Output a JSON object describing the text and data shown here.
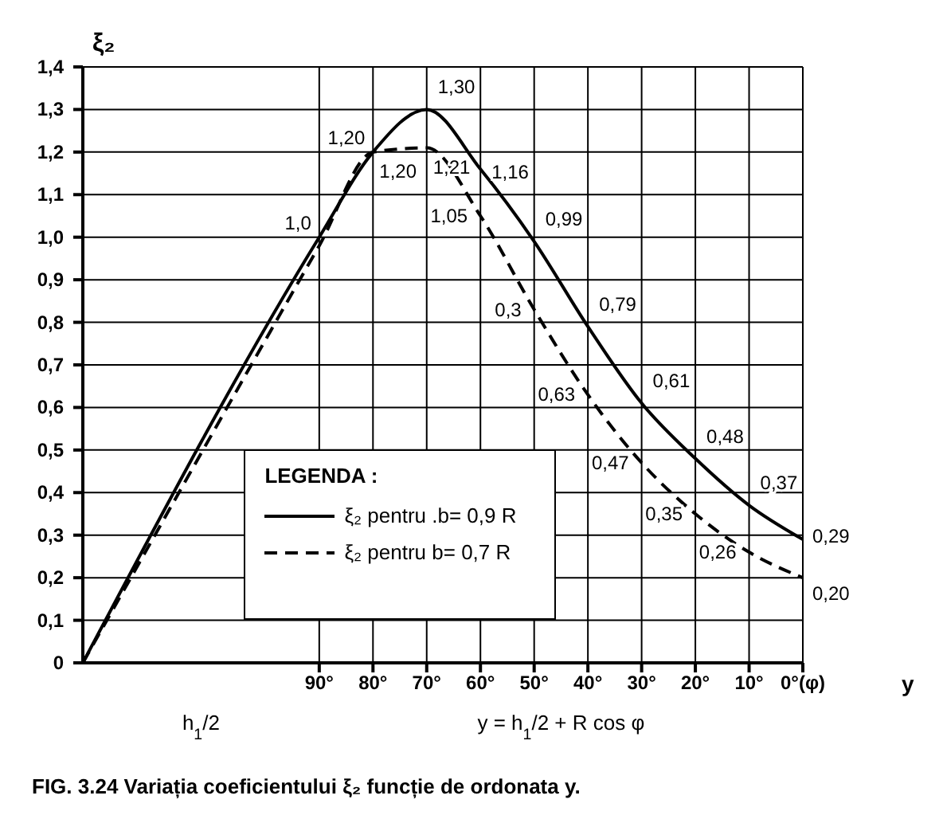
{
  "chart_data": {
    "type": "line",
    "title": "FIG. 3.24 Variația coeficientului ξ₂ funcție de ordonata y.",
    "ylabel": "ξ₂",
    "xlabel": "y",
    "legend_title": "LEGENDA :",
    "x": [
      134,
      90,
      80,
      70,
      60,
      50,
      40,
      30,
      20,
      10,
      0
    ],
    "xlim": [
      134,
      0
    ],
    "xticks": [
      {
        "value": 90,
        "label": "90°"
      },
      {
        "value": 80,
        "label": "80°"
      },
      {
        "value": 70,
        "label": "70°"
      },
      {
        "value": 60,
        "label": "60°"
      },
      {
        "value": 50,
        "label": "50°"
      },
      {
        "value": 40,
        "label": "40°"
      },
      {
        "value": 30,
        "label": "30°"
      },
      {
        "value": 20,
        "label": "20°"
      },
      {
        "value": 10,
        "label": "10°"
      },
      {
        "value": 0,
        "label": "0°(φ)"
      }
    ],
    "ylim": [
      0,
      1.4
    ],
    "yticks": [
      0,
      {
        "value": 0.1,
        "label": "0,1"
      },
      {
        "value": 0.2,
        "label": "0,2"
      },
      {
        "value": 0.3,
        "label": "0,3"
      },
      {
        "value": 0.4,
        "label": "0,4"
      },
      {
        "value": 0.5,
        "label": "0,5"
      },
      {
        "value": 0.6,
        "label": "0,6"
      },
      {
        "value": 0.7,
        "label": "0,7"
      },
      {
        "value": 0.8,
        "label": "0,8"
      },
      {
        "value": 0.9,
        "label": "0,9"
      },
      {
        "value": 1.0,
        "label": "1,0"
      },
      {
        "value": 1.1,
        "label": "1,1"
      },
      {
        "value": 1.2,
        "label": "1,2"
      },
      {
        "value": 1.3,
        "label": "1,3"
      },
      {
        "value": 1.4,
        "label": "1,4"
      }
    ],
    "series": [
      {
        "name": "ξ₂ pentru .b= 0,9 R",
        "color": "#000000",
        "line_style": "solid",
        "values": [
          0,
          1.0,
          1.2,
          1.3,
          1.16,
          0.99,
          0.79,
          0.61,
          0.48,
          0.37,
          0.29
        ],
        "value_labels": [
          null,
          "1,0",
          "1,20",
          "1,30",
          "1,16",
          "0,99",
          "0,79",
          "0,61",
          "0,48",
          "0,37",
          "0,29"
        ]
      },
      {
        "name": "ξ₂ pentru b= 0,7 R",
        "color": "#000000",
        "line_style": "dashed",
        "values": [
          0,
          0.98,
          1.2,
          1.21,
          1.05,
          0.83,
          0.63,
          0.47,
          0.35,
          0.26,
          0.2
        ],
        "value_labels": [
          null,
          null,
          "1,20",
          "1,21",
          "1,05",
          null,
          "0,63",
          "0,47",
          "0,35",
          "0,26",
          "0,20"
        ]
      }
    ],
    "annotations": [
      {
        "text": "0,3",
        "x": 50,
        "y": 0.83
      },
      "h$_{1}$/2",
      "y = h$_{1}$/2 + R cos φ"
    ],
    "grid": true,
    "legend": "bottom",
    "marker": "none"
  }
}
